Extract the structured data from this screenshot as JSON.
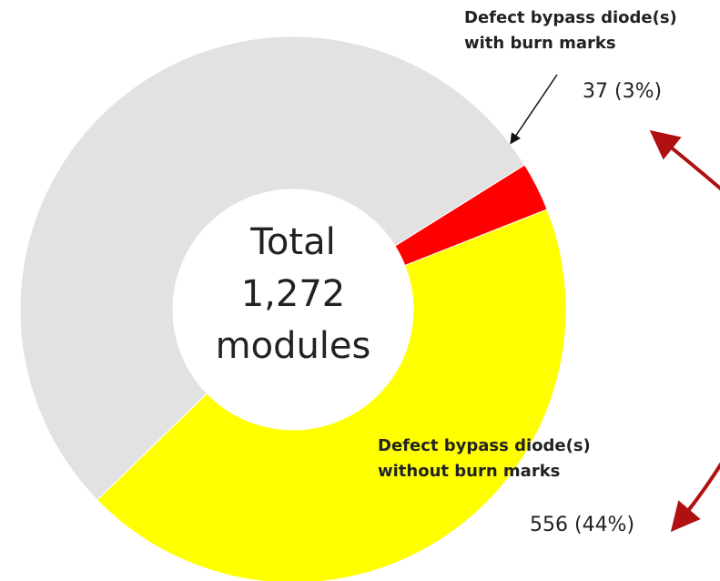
{
  "chart_data": {
    "type": "donut",
    "center_label": [
      "Total",
      "1,272",
      "modules"
    ],
    "categories": [
      "Defect bypass diode(s)\nwith burn marks",
      "Defect bypass diode(s)\nwithout burn marks",
      null
    ],
    "values": [
      37,
      556,
      679
    ],
    "value_labels": [
      "37 (3%)",
      "556 (44%)",
      null
    ],
    "colors": [
      "#ff0000",
      "#ffff00",
      "#e2e2e2"
    ]
  }
}
